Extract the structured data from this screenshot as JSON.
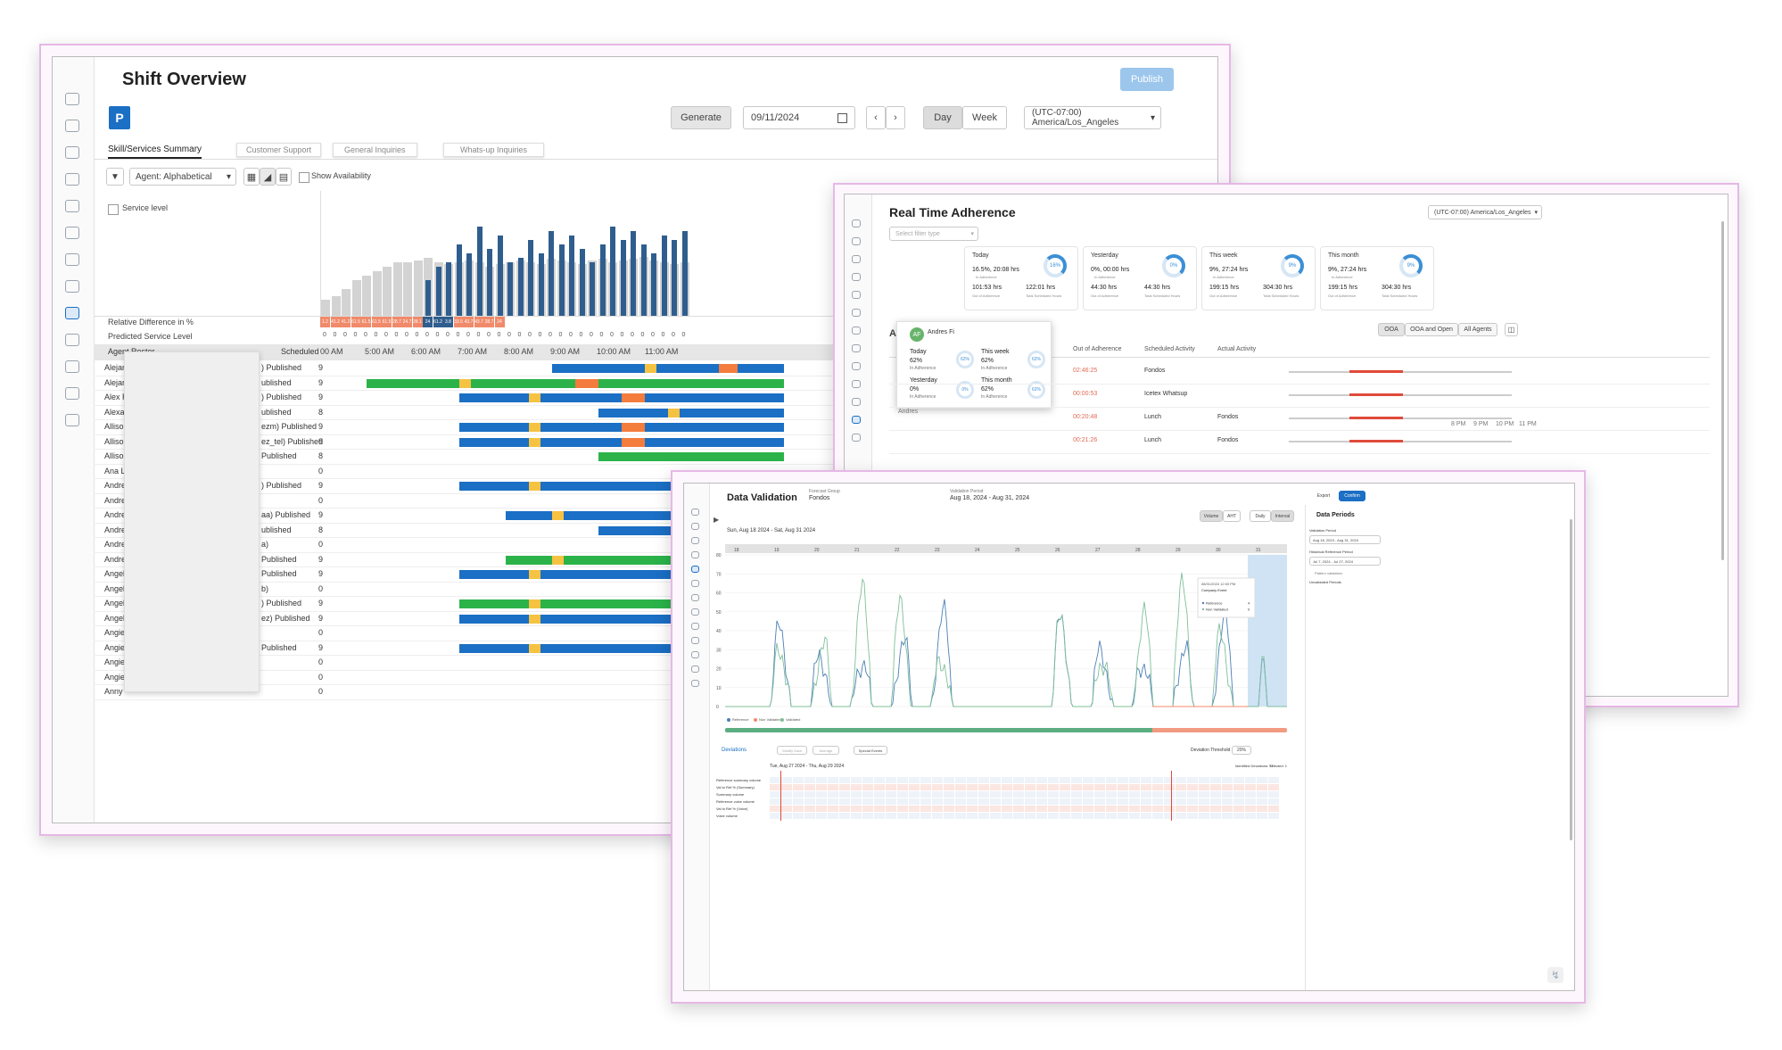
{
  "shift": {
    "title": "Shift Overview",
    "publish_label": "Publish",
    "generate_label": "Generate",
    "date_value": "09/11/2024",
    "day_label": "Day",
    "week_label": "Week",
    "timezone": "(UTC-07:00) America/Los_Angeles",
    "tabs": [
      "Skill/Services Summary",
      "Customer Support",
      "General Inquiries",
      "Whats-up Inquiries"
    ],
    "sort_label": "Agent: Alphabetical",
    "show_availability": "Show Availability",
    "service_level": "Service level",
    "relative_diff_label": "Relative Difference in %",
    "predicted_label": "Predicted Service Level",
    "roster_label": "Agent Roster",
    "scheduled_label": "Scheduled",
    "time_labels": [
      "00 AM",
      "5:00 AM",
      "6:00 AM",
      "7:00 AM",
      "8:00 AM",
      "9:00 AM",
      "10:00 AM",
      "11:00 AM"
    ],
    "diff_values": [
      "1.2",
      "41.2",
      "41.2",
      "61.5",
      "61.5",
      "61.5",
      "61.5",
      "28.7",
      "24.7",
      "28.1",
      "24",
      "61.2",
      "3.8",
      "33.5",
      "43.7",
      "43.7",
      "28.7",
      "24"
    ],
    "agents": [
      {
        "name": "Alejan",
        "status": ") Published",
        "sched": "9"
      },
      {
        "name": "Alejan",
        "status": "ublished",
        "sched": "9"
      },
      {
        "name": "Alex R",
        "status": ") Published",
        "sched": "9"
      },
      {
        "name": "Alexa",
        "status": "ublished",
        "sched": "8"
      },
      {
        "name": "Allison",
        "status": "ezm) Published",
        "sched": "9"
      },
      {
        "name": "Alliso",
        "status": "ez_tel) Published",
        "sched": "9"
      },
      {
        "name": "Alliso",
        "status": "Published",
        "sched": "8"
      },
      {
        "name": "Ana L",
        "status": "",
        "sched": "0"
      },
      {
        "name": "Andre",
        "status": ") Published",
        "sched": "9"
      },
      {
        "name": "Andre",
        "status": "",
        "sched": "0"
      },
      {
        "name": "Andre",
        "status": "aa) Published",
        "sched": "9"
      },
      {
        "name": "Andre",
        "status": "ublished",
        "sched": "8"
      },
      {
        "name": "Andre",
        "status": "a)",
        "sched": "0"
      },
      {
        "name": "Andre",
        "status": "Published",
        "sched": "9"
      },
      {
        "name": "Angel",
        "status": "Published",
        "sched": "9"
      },
      {
        "name": "Angel",
        "status": "b)",
        "sched": "0"
      },
      {
        "name": "Angel",
        "status": ") Published",
        "sched": "9"
      },
      {
        "name": "Angel",
        "status": "ez) Published",
        "sched": "9"
      },
      {
        "name": "Angie",
        "status": "",
        "sched": "0"
      },
      {
        "name": "Angie",
        "status": "Published",
        "sched": "9"
      },
      {
        "name": "Angie",
        "status": "",
        "sched": "0"
      },
      {
        "name": "Angie",
        "status": "",
        "sched": "0"
      },
      {
        "name": "Anny",
        "status": "",
        "sched": "0"
      }
    ]
  },
  "rta": {
    "title": "Real Time Adherence",
    "timezone": "(UTC-07:00) America/Los_Angeles",
    "filter_placeholder": "Select filter type",
    "kpis": [
      {
        "period": "Today",
        "main": "16.5%, 20:08 hrs",
        "sub": "In Adherence",
        "a": "101:53 hrs",
        "a_label": "Out of Adherence",
        "b": "122:01 hrs",
        "b_label": "Total Scheduled Hours",
        "ring": "16%"
      },
      {
        "period": "Yesterday",
        "main": "0%, 00:00 hrs",
        "sub": "In Adherence",
        "a": "44:30 hrs",
        "a_label": "Out of Adherence",
        "b": "44:30 hrs",
        "b_label": "Total Scheduled Hours",
        "ring": "0%"
      },
      {
        "period": "This week",
        "main": "9%, 27:24 hrs",
        "sub": "In Adherence",
        "a": "199:15 hrs",
        "a_label": "Out of Adherence",
        "b": "304:30 hrs",
        "b_label": "Total Scheduled Hours",
        "ring": "9%"
      },
      {
        "period": "This month",
        "main": "9%, 27:24 hrs",
        "sub": "In Adherence",
        "a": "199:15 hrs",
        "a_label": "Out of Adherence",
        "b": "304:30 hrs",
        "b_label": "Total Scheduled Hours",
        "ring": "9%"
      }
    ],
    "tabs": [
      "OOA",
      "OOA and Open",
      "All Agents"
    ],
    "columns": [
      "Out of Adherence",
      "Scheduled Activity",
      "Actual Activity"
    ],
    "rows": [
      {
        "ooa": "02:46:25",
        "sched": "Fondos",
        "actual": ""
      },
      {
        "ooa": "00:00:53",
        "sched": "Icetex Whatsup",
        "actual": ""
      },
      {
        "ooa": "00:20:48",
        "sched": "Lunch",
        "actual": "Fondos"
      },
      {
        "ooa": "00:21:26",
        "sched": "Lunch",
        "actual": "Fondos"
      }
    ],
    "popup": {
      "initials": "AF",
      "name": "Andres Fi",
      "today": "Today",
      "today_val": "62%",
      "today_ring": "62%",
      "week": "This week",
      "week_val": "62%",
      "week_ring": "62%",
      "yesterday": "Yesterday",
      "yesterday_val": "0%",
      "yesterday_ring": "0%",
      "month": "This month",
      "month_val": "62%",
      "month_ring": "62%",
      "sub": "In Adherence"
    },
    "row_partial": "Andres",
    "hour_labels": [
      "8 PM",
      "9 PM",
      "10 PM",
      "11 PM"
    ]
  },
  "dv": {
    "title": "Data Validation",
    "forecast_group_label": "Forecast Group",
    "forecast_group": "Fondos",
    "validation_period_label": "Validation Period",
    "validation_period": "Aug 18, 2024 - Aug 31, 2024",
    "export_label": "Export",
    "confirm_label": "Confirm",
    "volume_label": "Volume",
    "aht_label": "AHT",
    "daily_label": "Daily",
    "interval_label": "Interval",
    "date_range": "Sun, Aug 18 2024 - Sat, Aug 31 2024",
    "side_title": "Data Periods",
    "side_validation_label": "Validation Period",
    "side_validation_value": "Aug 18, 2024 - Aug 31, 2024",
    "side_hist_label": "Historical Reference Period",
    "side_hist_value": "Jul 7, 2024 - Jul 27, 2024",
    "side_pattern": "Pattern validation",
    "side_unvalidated": "Unvalidated Periods",
    "tooltip_date": "08/31/2024 12:00 PM",
    "tooltip_event": "Company Event",
    "tooltip_ref_label": "Reference",
    "tooltip_ref_value": "4",
    "tooltip_nonval_label": "Non Validated",
    "tooltip_nonval_value": "0",
    "legend": [
      "Reference",
      "Non Validated",
      "Validated"
    ],
    "deviations_label": "Deviations",
    "modify_label": "Modify Data",
    "average_label": "Average",
    "special_label": "Special Events",
    "threshold_label": "Deviation Threshold",
    "threshold_value": "20%",
    "table_range": "Tue, Aug 27 2024 - Thu, Aug 29 2024",
    "identified": "Identified Deviations: 77",
    "selected": "Selected: 1",
    "table_rows": [
      "Reference summary volume",
      "Val to Ref % (Summary)",
      "Summary volume",
      "Reference voice volume",
      "Val to Ref % (Voice)",
      "Voice volume"
    ],
    "y_ticks": [
      "80",
      "70",
      "60",
      "50",
      "40",
      "30",
      "20",
      "10",
      "0"
    ],
    "x_ticks": [
      "18",
      "19",
      "20",
      "21",
      "22",
      "23",
      "24",
      "25",
      "26",
      "27",
      "28",
      "29",
      "30",
      "31"
    ],
    "colors": {
      "reference": "#4a7fb5",
      "validated": "#7fbf9a",
      "non_validated": "#f08a6a"
    }
  }
}
